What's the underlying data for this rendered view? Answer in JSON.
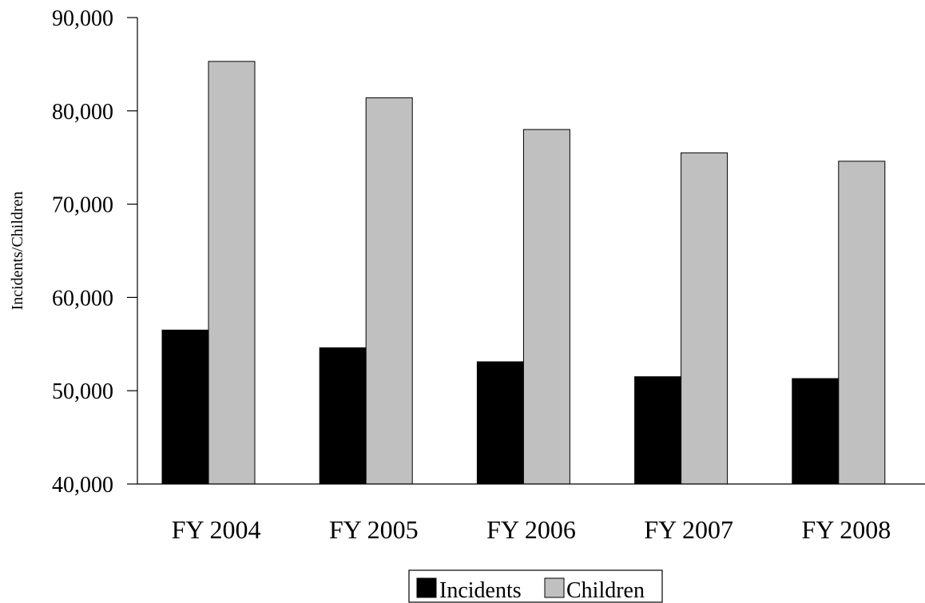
{
  "chart_data": {
    "type": "bar",
    "title": "",
    "xlabel": "",
    "ylabel": "Incidents/Children",
    "categories": [
      "FY 2004",
      "FY 2005",
      "FY 2006",
      "FY 2007",
      "FY 2008"
    ],
    "series": [
      {
        "name": "Incidents",
        "values": [
          56500,
          54600,
          53100,
          51500,
          51300
        ],
        "color": "#000000"
      },
      {
        "name": "Children",
        "values": [
          85300,
          81400,
          78000,
          75500,
          74600
        ],
        "color": "#c0c0c0"
      }
    ],
    "ylim": [
      40000,
      90000
    ],
    "yticks": [
      40000,
      50000,
      60000,
      70000,
      80000,
      90000
    ],
    "ytick_labels": [
      "40,000",
      "50,000",
      "60,000",
      "70,000",
      "80,000",
      "90,000"
    ],
    "grid": false,
    "legend_position": "bottom"
  }
}
